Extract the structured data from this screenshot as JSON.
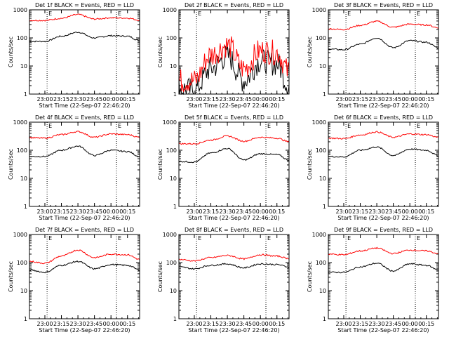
{
  "figure": {
    "time_ticks": [
      "23:00",
      "23:15",
      "23:30",
      "23:45",
      "00:00",
      "00:15"
    ],
    "ytick_labels": [
      "1",
      "10",
      "100",
      "1000"
    ],
    "xlabel": "Start Time (22-Sep-07 22:46:20)",
    "ylabel": "Counts/sec",
    "marker_label": "E",
    "colors": {
      "events": "#000000",
      "lld": "#ff0000",
      "axes": "#000000",
      "background": "#ffffff"
    }
  },
  "chart_data": [
    {
      "type": "line",
      "scale": "log",
      "ylim": [
        1,
        1000
      ],
      "title": "Det 1f BLACK = Events, RED = LLD",
      "xlabel": "Start Time (22-Sep-07 22:46:20)",
      "ylabel": "Counts/sec",
      "x_ticks": [
        "23:00",
        "23:15",
        "23:30",
        "23:45",
        "00:00",
        "00:15"
      ],
      "vlines": [
        "23:02",
        "00:05"
      ],
      "series": [
        {
          "name": "BLACK = Events",
          "color": "#000000",
          "x": [
            "22:46",
            "23:00",
            "23:15",
            "23:30",
            "23:45",
            "00:00",
            "00:15",
            "00:26"
          ],
          "values": [
            75,
            75,
            115,
            160,
            100,
            120,
            115,
            80
          ]
        },
        {
          "name": "RED = LLD",
          "color": "#ff0000",
          "x": [
            "22:46",
            "23:00",
            "23:15",
            "23:30",
            "23:45",
            "00:00",
            "00:15",
            "00:26"
          ],
          "values": [
            420,
            420,
            500,
            680,
            470,
            520,
            510,
            430
          ]
        }
      ]
    },
    {
      "type": "line",
      "scale": "log",
      "ylim": [
        1,
        1000
      ],
      "title": "Det 2f BLACK = Events, RED = LLD",
      "xlabel": "Start Time (22-Sep-07 22:46:20)",
      "ylabel": "Counts/sec",
      "x_ticks": [
        "23:00",
        "23:15",
        "23:30",
        "23:45",
        "00:00",
        "00:15"
      ],
      "vlines": [
        "23:02",
        "00:05"
      ],
      "series": [
        {
          "name": "BLACK = Events",
          "color": "#000000",
          "x": [
            "22:46",
            "23:00",
            "23:15",
            "23:30",
            "23:45",
            "00:00",
            "00:15",
            "00:26"
          ],
          "values": [
            1.5,
            1.4,
            8,
            22,
            3,
            15,
            12,
            2
          ]
        },
        {
          "name": "RED = LLD",
          "color": "#ff0000",
          "x": [
            "22:46",
            "23:00",
            "23:15",
            "23:30",
            "23:45",
            "00:00",
            "00:15",
            "00:26"
          ],
          "values": [
            3,
            3,
            25,
            55,
            8,
            35,
            30,
            6
          ]
        }
      ]
    },
    {
      "type": "line",
      "scale": "log",
      "ylim": [
        1,
        1000
      ],
      "title": "Det 3f BLACK = Events, RED = LLD",
      "xlabel": "Start Time (22-Sep-07 22:46:20)",
      "ylabel": "Counts/sec",
      "x_ticks": [
        "23:00",
        "23:15",
        "23:30",
        "23:45",
        "00:00",
        "00:15"
      ],
      "vlines": [
        "23:02",
        "00:05"
      ],
      "series": [
        {
          "name": "BLACK = Events",
          "color": "#000000",
          "x": [
            "22:46",
            "23:00",
            "23:15",
            "23:30",
            "23:45",
            "00:00",
            "00:15",
            "00:26"
          ],
          "values": [
            40,
            38,
            60,
            100,
            45,
            80,
            70,
            45
          ]
        },
        {
          "name": "RED = LLD",
          "color": "#ff0000",
          "x": [
            "22:46",
            "23:00",
            "23:15",
            "23:30",
            "23:45",
            "00:00",
            "00:15",
            "00:26"
          ],
          "values": [
            210,
            200,
            280,
            390,
            240,
            310,
            290,
            230
          ]
        }
      ]
    },
    {
      "type": "line",
      "scale": "log",
      "ylim": [
        1,
        1000
      ],
      "title": "Det 4f BLACK = Events, RED = LLD",
      "xlabel": "Start Time (22-Sep-07 22:46:20)",
      "ylabel": "Counts/sec",
      "x_ticks": [
        "23:00",
        "23:15",
        "23:30",
        "23:45",
        "00:00",
        "00:15"
      ],
      "vlines": [
        "23:02",
        "00:05"
      ],
      "series": [
        {
          "name": "BLACK = Events",
          "color": "#000000",
          "x": [
            "22:46",
            "23:00",
            "23:15",
            "23:30",
            "23:45",
            "00:00",
            "00:15",
            "00:26"
          ],
          "values": [
            60,
            60,
            100,
            140,
            65,
            100,
            90,
            60
          ]
        },
        {
          "name": "RED = LLD",
          "color": "#ff0000",
          "x": [
            "22:46",
            "23:00",
            "23:15",
            "23:30",
            "23:45",
            "00:00",
            "00:15",
            "00:26"
          ],
          "values": [
            280,
            270,
            360,
            460,
            290,
            380,
            360,
            290
          ]
        }
      ]
    },
    {
      "type": "line",
      "scale": "log",
      "ylim": [
        1,
        1000
      ],
      "title": "Det 5f BLACK = Events, RED = LLD",
      "xlabel": "Start Time (22-Sep-07 22:46:20)",
      "ylabel": "Counts/sec",
      "x_ticks": [
        "23:00",
        "23:15",
        "23:30",
        "23:45",
        "00:00",
        "00:15"
      ],
      "vlines": [
        "23:02",
        "00:05"
      ],
      "series": [
        {
          "name": "BLACK = Events",
          "color": "#000000",
          "x": [
            "22:46",
            "23:00",
            "23:15",
            "23:30",
            "23:45",
            "00:00",
            "00:15",
            "00:26"
          ],
          "values": [
            40,
            38,
            80,
            115,
            45,
            75,
            70,
            45
          ]
        },
        {
          "name": "RED = LLD",
          "color": "#ff0000",
          "x": [
            "22:46",
            "23:00",
            "23:15",
            "23:30",
            "23:45",
            "00:00",
            "00:15",
            "00:26"
          ],
          "values": [
            170,
            170,
            230,
            320,
            210,
            290,
            270,
            200
          ]
        }
      ]
    },
    {
      "type": "line",
      "scale": "log",
      "ylim": [
        1,
        1000
      ],
      "title": "Det 6f BLACK = Events, RED = LLD",
      "xlabel": "Start Time (22-Sep-07 22:46:20)",
      "ylabel": "Counts/sec",
      "x_ticks": [
        "23:00",
        "23:15",
        "23:30",
        "23:45",
        "00:00",
        "00:15"
      ],
      "vlines": [
        "23:02",
        "00:05"
      ],
      "series": [
        {
          "name": "BLACK = Events",
          "color": "#000000",
          "x": [
            "22:46",
            "23:00",
            "23:15",
            "23:30",
            "23:45",
            "00:00",
            "00:15",
            "00:26"
          ],
          "values": [
            60,
            58,
            100,
            130,
            65,
            110,
            100,
            65
          ]
        },
        {
          "name": "RED = LLD",
          "color": "#ff0000",
          "x": [
            "22:46",
            "23:00",
            "23:15",
            "23:30",
            "23:45",
            "00:00",
            "00:15",
            "00:26"
          ],
          "values": [
            270,
            260,
            350,
            450,
            290,
            380,
            360,
            290
          ]
        }
      ]
    },
    {
      "type": "line",
      "scale": "log",
      "ylim": [
        1,
        1000
      ],
      "title": "Det 7f BLACK = Events, RED = LLD",
      "xlabel": "Start Time (22-Sep-07 22:46:20)",
      "ylabel": "Counts/sec",
      "x_ticks": [
        "23:00",
        "23:15",
        "23:30",
        "23:45",
        "00:00",
        "00:15"
      ],
      "vlines": [
        "23:02",
        "00:05"
      ],
      "series": [
        {
          "name": "BLACK = Events",
          "color": "#000000",
          "x": [
            "22:46",
            "23:00",
            "23:15",
            "23:30",
            "23:45",
            "00:00",
            "00:15",
            "00:26"
          ],
          "values": [
            55,
            45,
            80,
            110,
            60,
            85,
            80,
            55
          ]
        },
        {
          "name": "RED = LLD",
          "color": "#ff0000",
          "x": [
            "22:46",
            "23:00",
            "23:15",
            "23:30",
            "23:45",
            "00:00",
            "00:15",
            "00:26"
          ],
          "values": [
            110,
            95,
            170,
            280,
            150,
            200,
            190,
            130
          ]
        }
      ]
    },
    {
      "type": "line",
      "scale": "log",
      "ylim": [
        1,
        1000
      ],
      "title": "Det 8f BLACK = Events, RED = LLD",
      "xlabel": "Start Time (22-Sep-07 22:46:20)",
      "ylabel": "Counts/sec",
      "x_ticks": [
        "23:00",
        "23:15",
        "23:30",
        "23:45",
        "00:00",
        "00:15"
      ],
      "vlines": [
        "23:02",
        "00:05"
      ],
      "series": [
        {
          "name": "BLACK = Events",
          "color": "#000000",
          "x": [
            "22:46",
            "23:00",
            "23:15",
            "23:30",
            "23:45",
            "00:00",
            "00:15",
            "00:26"
          ],
          "values": [
            70,
            60,
            80,
            90,
            65,
            90,
            85,
            70
          ]
        },
        {
          "name": "RED = LLD",
          "color": "#ff0000",
          "x": [
            "22:46",
            "23:00",
            "23:15",
            "23:30",
            "23:45",
            "00:00",
            "00:15",
            "00:26"
          ],
          "values": [
            130,
            115,
            150,
            180,
            135,
            190,
            170,
            140
          ]
        }
      ]
    },
    {
      "type": "line",
      "scale": "log",
      "ylim": [
        1,
        1000
      ],
      "title": "Det 9f BLACK = Events, RED = LLD",
      "xlabel": "Start Time (22-Sep-07 22:46:20)",
      "ylabel": "Counts/sec",
      "x_ticks": [
        "23:00",
        "23:15",
        "23:30",
        "23:45",
        "00:00",
        "00:15"
      ],
      "vlines": [
        "23:02",
        "00:05"
      ],
      "series": [
        {
          "name": "BLACK = Events",
          "color": "#000000",
          "x": [
            "22:46",
            "23:00",
            "23:15",
            "23:30",
            "23:45",
            "00:00",
            "00:15",
            "00:26"
          ],
          "values": [
            45,
            45,
            70,
            95,
            50,
            90,
            80,
            55
          ]
        },
        {
          "name": "RED = LLD",
          "color": "#ff0000",
          "x": [
            "22:46",
            "23:00",
            "23:15",
            "23:30",
            "23:45",
            "00:00",
            "00:15",
            "00:26"
          ],
          "values": [
            200,
            190,
            260,
            330,
            210,
            280,
            260,
            210
          ]
        }
      ]
    }
  ]
}
